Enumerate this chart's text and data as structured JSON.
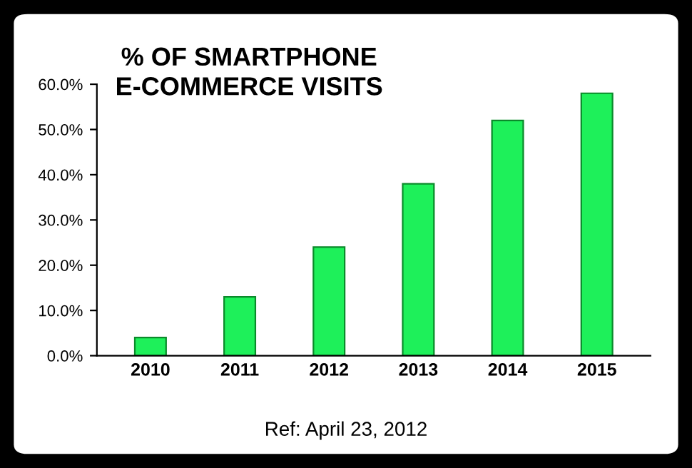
{
  "chart_data": {
    "type": "bar",
    "title": "% OF SMARTPHONE\nE-COMMERCE VISITS",
    "categories": [
      "2010",
      "2011",
      "2012",
      "2013",
      "2014",
      "2015"
    ],
    "values": [
      4,
      13,
      24,
      38,
      52,
      58
    ],
    "color": "#1ef05a",
    "ylim": [
      0,
      60
    ],
    "yticks": [
      {
        "value": 0,
        "label": "0.0%"
      },
      {
        "value": 10,
        "label": "10.0%"
      },
      {
        "value": 20,
        "label": "20.0%"
      },
      {
        "value": 30,
        "label": "30.0%"
      },
      {
        "value": 40,
        "label": "40.0%"
      },
      {
        "value": 50,
        "label": "50.0%"
      },
      {
        "value": 60,
        "label": "60.0%"
      }
    ],
    "grid": false,
    "annotations": [
      "Ref: April 23, 2012"
    ]
  }
}
